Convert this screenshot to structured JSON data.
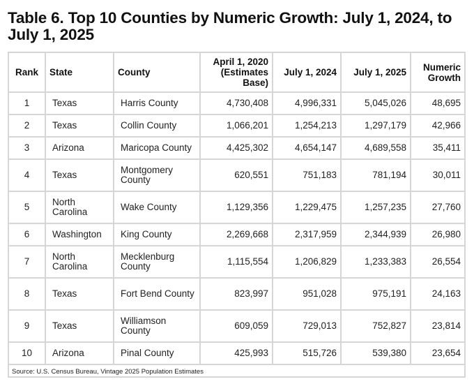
{
  "title": "Table 6. Top 10 Counties by Numeric Growth: July 1, 2024, to July 1, 2025",
  "headers": {
    "rank": "Rank",
    "state": "State",
    "county": "County",
    "base": "April 1, 2020 (Estimates Base)",
    "jul2024": "July 1, 2024",
    "jul2025": "July 1, 2025",
    "growth": "Numeric Growth"
  },
  "rows": [
    {
      "rank": "1",
      "state": "Texas",
      "county": "Harris County",
      "base": "4,730,408",
      "jul2024": "4,996,331",
      "jul2025": "5,045,026",
      "growth": "48,695"
    },
    {
      "rank": "2",
      "state": "Texas",
      "county": "Collin County",
      "base": "1,066,201",
      "jul2024": "1,254,213",
      "jul2025": "1,297,179",
      "growth": "42,966"
    },
    {
      "rank": "3",
      "state": "Arizona",
      "county": "Maricopa County",
      "base": "4,425,302",
      "jul2024": "4,654,147",
      "jul2025": "4,689,558",
      "growth": "35,411"
    },
    {
      "rank": "4",
      "state": "Texas",
      "county": "Montgomery County",
      "base": "620,551",
      "jul2024": "751,183",
      "jul2025": "781,194",
      "growth": "30,011"
    },
    {
      "rank": "5",
      "state": "North Carolina",
      "county": "Wake County",
      "base": "1,129,356",
      "jul2024": "1,229,475",
      "jul2025": "1,257,235",
      "growth": "27,760"
    },
    {
      "rank": "6",
      "state": "Washington",
      "county": "King County",
      "base": "2,269,668",
      "jul2024": "2,317,959",
      "jul2025": "2,344,939",
      "growth": "26,980"
    },
    {
      "rank": "7",
      "state": "North Carolina",
      "county": "Mecklenburg County",
      "base": "1,115,554",
      "jul2024": "1,206,829",
      "jul2025": "1,233,383",
      "growth": "26,554"
    },
    {
      "rank": "8",
      "state": "Texas",
      "county": "Fort Bend County",
      "base": "823,997",
      "jul2024": "951,028",
      "jul2025": "975,191",
      "growth": "24,163"
    },
    {
      "rank": "9",
      "state": "Texas",
      "county": "Williamson County",
      "base": "609,059",
      "jul2024": "729,013",
      "jul2025": "752,827",
      "growth": "23,814"
    },
    {
      "rank": "10",
      "state": "Arizona",
      "county": "Pinal County",
      "base": "425,993",
      "jul2024": "515,726",
      "jul2025": "539,380",
      "growth": "23,654"
    }
  ],
  "source": "Source: U.S. Census Bureau, Vintage 2025 Population Estimates"
}
